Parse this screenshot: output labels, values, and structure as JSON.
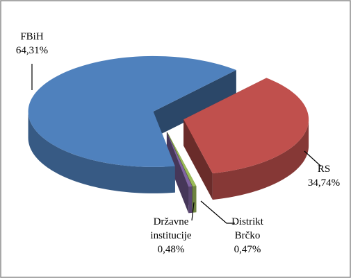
{
  "chart_data": {
    "type": "pie",
    "categories": [
      "FBiH",
      "RS",
      "Distrikt Brčko",
      "Državne institucije"
    ],
    "values": [
      64.31,
      34.74,
      0.47,
      0.48
    ],
    "value_labels": [
      "64,31%",
      "34,74%",
      "0,47%",
      "0,48%"
    ],
    "colors": [
      "#4f81bd",
      "#c0504d",
      "#9bbb59",
      "#8064a2"
    ]
  }
}
